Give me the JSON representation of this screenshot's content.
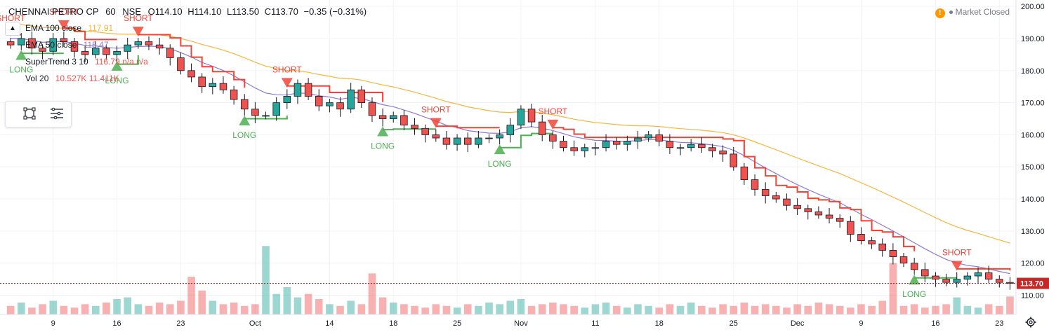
{
  "header": {
    "symbol": "CHENNAI PETRO CP",
    "interval": "60",
    "exchange": "NSE",
    "ohlc": {
      "open": "O114.10",
      "high": "H114.10",
      "low": "L113.50",
      "close": "C113.70",
      "change": "−0.35 (−0.31%)"
    }
  },
  "legend": [
    {
      "label": "EMA 100 close",
      "value": "117.91",
      "color": "#f7b53b"
    },
    {
      "label": "EMA 50 close",
      "value": "115.47",
      "color": "#8f78d6"
    },
    {
      "label": "SuperTrend 3 10",
      "value": "116.79 n/a n/a",
      "color": "#ef5350"
    },
    {
      "label": "Vol 20",
      "value": "10.527K 11.411K",
      "color": "#ef5350"
    }
  ],
  "status": {
    "market": "Market Closed",
    "warning_icon": "warning-icon"
  },
  "colors": {
    "up": "#26a69a",
    "down": "#ef5350",
    "st_up": "#4caf50",
    "st_down": "#f44336",
    "ema100": "#f7b53b",
    "ema50": "#8f78d6"
  },
  "chart_data": {
    "type": "candlestick",
    "symbol": "CHENNAI PETRO CP",
    "ylim": [
      104,
      202
    ],
    "y_ticks": [
      200,
      190,
      180,
      170,
      160,
      150,
      140,
      130,
      120,
      110
    ],
    "y_tick_labels": [
      "200.00",
      "190.00",
      "180.00",
      "170.00",
      "160.00",
      "150.00",
      "140.00",
      "130.00",
      "120.00",
      "110.00"
    ],
    "x_ticks": [
      {
        "x": 4,
        "label": "9"
      },
      {
        "x": 10,
        "label": "16"
      },
      {
        "x": 16,
        "label": "23"
      },
      {
        "x": 23,
        "label": "Oct"
      },
      {
        "x": 30,
        "label": "14"
      },
      {
        "x": 36,
        "label": "18"
      },
      {
        "x": 42,
        "label": "25"
      },
      {
        "x": 48,
        "label": "Nov"
      },
      {
        "x": 55,
        "label": "11"
      },
      {
        "x": 61,
        "label": "18"
      },
      {
        "x": 68,
        "label": "25"
      },
      {
        "x": 74,
        "label": "Dec"
      },
      {
        "x": 80,
        "label": "9"
      },
      {
        "x": 87,
        "label": "16"
      },
      {
        "x": 93,
        "label": "23"
      }
    ],
    "x_range": [
      -1,
      94.5
    ],
    "last_price": 113.7,
    "last_price_label": "113.70",
    "close": [
      188,
      190,
      187,
      186,
      190,
      189,
      186,
      185,
      187,
      185,
      186,
      188,
      189,
      188,
      187,
      184,
      180,
      178,
      175,
      176,
      174,
      171,
      168,
      166,
      166,
      170,
      172,
      176,
      172,
      169,
      170,
      168,
      174,
      170,
      166,
      165,
      166,
      163,
      162,
      160,
      159,
      157,
      159,
      157,
      159,
      159,
      160,
      163,
      168,
      164,
      160,
      158,
      156,
      155,
      156,
      156,
      158,
      157,
      158,
      159,
      160,
      158,
      156,
      156,
      157,
      156,
      155,
      154,
      150,
      146,
      143,
      141,
      140,
      138,
      137,
      136,
      135,
      134,
      133,
      129,
      127,
      126,
      124,
      122,
      120,
      118,
      116,
      115,
      114,
      115,
      116,
      117,
      115,
      114,
      113.7
    ],
    "volume": [
      5,
      7,
      4,
      6,
      8,
      5,
      4,
      6,
      5,
      7,
      9,
      10,
      6,
      5,
      7,
      6,
      8,
      22,
      14,
      8,
      6,
      7,
      5,
      6,
      40,
      12,
      16,
      10,
      12,
      9,
      6,
      5,
      8,
      6,
      24,
      10,
      7,
      6,
      5,
      4,
      6,
      5,
      4,
      6,
      5,
      7,
      6,
      8,
      9,
      5,
      6,
      7,
      6,
      5,
      4,
      6,
      7,
      5,
      4,
      6,
      5,
      4,
      6,
      5,
      7,
      5,
      4,
      6,
      5,
      7,
      5,
      6,
      5,
      4,
      6,
      5,
      7,
      6,
      5,
      4,
      6,
      5,
      8,
      30,
      5,
      6,
      4,
      5,
      6,
      10,
      5,
      4,
      6,
      5,
      10.5
    ],
    "vol_max": 45,
    "signals": [
      {
        "i": 0,
        "type": "short",
        "label": "SHORT"
      },
      {
        "i": 1,
        "type": "long",
        "label": "LONG"
      },
      {
        "i": 5,
        "type": "short",
        "label": "SHORT"
      },
      {
        "i": 10,
        "type": "long",
        "label": "LONG"
      },
      {
        "i": 12,
        "type": "short",
        "label": "SHORT"
      },
      {
        "i": 22,
        "type": "long",
        "label": "LONG"
      },
      {
        "i": 26,
        "type": "short",
        "label": "SHORT"
      },
      {
        "i": 35,
        "type": "long",
        "label": "LONG"
      },
      {
        "i": 40,
        "type": "short",
        "label": "SHORT"
      },
      {
        "i": 46,
        "type": "long",
        "label": "LONG"
      },
      {
        "i": 51,
        "type": "short",
        "label": "SHORT"
      },
      {
        "i": 85,
        "type": "long",
        "label": "LONG"
      },
      {
        "i": 89,
        "type": "short",
        "label": "SHORT"
      }
    ]
  }
}
